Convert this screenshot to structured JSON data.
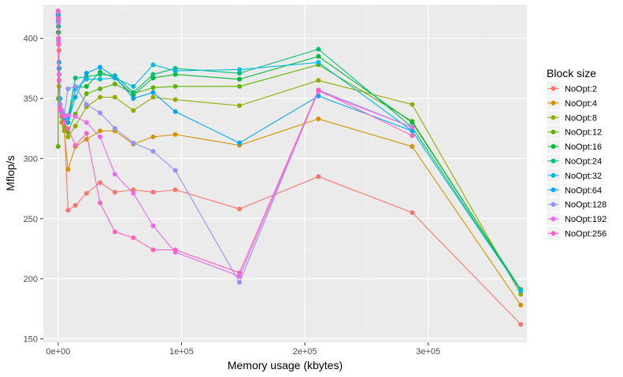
{
  "chart_data": {
    "type": "line",
    "title": "",
    "xlabel": "Memory usage (kbytes)",
    "ylabel": "Mflop/s",
    "xlim": [
      -12000,
      380000
    ],
    "ylim": [
      147,
      428
    ],
    "x_ticks": [
      0,
      100000,
      200000,
      300000
    ],
    "x_tick_labels": [
      "0e+00",
      "1e+05",
      "2e+05",
      "3e+05"
    ],
    "y_ticks": [
      150,
      200,
      250,
      300,
      350,
      400
    ],
    "y_tick_labels": [
      "150",
      "200",
      "250",
      "300",
      "350",
      "400"
    ],
    "grid": true,
    "legend": {
      "title": "Block size",
      "position": "right"
    },
    "series": [
      {
        "name": "NoOpt:2",
        "color": "#F8766D",
        "points": [
          [
            0,
            405
          ],
          [
            200,
            400
          ],
          [
            400,
            395
          ],
          [
            700,
            390
          ],
          [
            1200,
            345
          ],
          [
            2000,
            340
          ],
          [
            3000,
            336
          ],
          [
            5000,
            330
          ],
          [
            8000,
            257
          ],
          [
            14000,
            261
          ],
          [
            23000,
            271
          ],
          [
            34000,
            280
          ],
          [
            46000,
            272
          ],
          [
            61000,
            274
          ],
          [
            77000,
            272
          ],
          [
            95000,
            274
          ],
          [
            147000,
            258
          ],
          [
            211000,
            285
          ],
          [
            287000,
            255
          ],
          [
            375000,
            162
          ]
        ]
      },
      {
        "name": "NoOpt:4",
        "color": "#D39200",
        "points": [
          [
            0,
            350
          ],
          [
            200,
            398
          ],
          [
            400,
            395
          ],
          [
            800,
            360
          ],
          [
            1500,
            340
          ],
          [
            3000,
            330
          ],
          [
            5000,
            323
          ],
          [
            8000,
            291
          ],
          [
            14000,
            310
          ],
          [
            23000,
            316
          ],
          [
            34000,
            323
          ],
          [
            46000,
            323
          ],
          [
            61000,
            312
          ],
          [
            77000,
            318
          ],
          [
            95000,
            320
          ],
          [
            147000,
            311
          ],
          [
            211000,
            333
          ],
          [
            287000,
            310
          ],
          [
            375000,
            178
          ]
        ]
      },
      {
        "name": "NoOpt:8",
        "color": "#93AA00",
        "points": [
          [
            0,
            310
          ],
          [
            200,
            405
          ],
          [
            400,
            400
          ],
          [
            800,
            370
          ],
          [
            1500,
            345
          ],
          [
            3000,
            335
          ],
          [
            5000,
            326
          ],
          [
            8000,
            318
          ],
          [
            14000,
            327
          ],
          [
            23000,
            343
          ],
          [
            34000,
            351
          ],
          [
            46000,
            351
          ],
          [
            61000,
            340
          ],
          [
            77000,
            351
          ],
          [
            95000,
            349
          ],
          [
            147000,
            344
          ],
          [
            211000,
            365
          ],
          [
            287000,
            345
          ],
          [
            375000,
            187
          ]
        ]
      },
      {
        "name": "NoOpt:12",
        "color": "#5EB300",
        "points": [
          [
            0,
            310
          ],
          [
            200,
            410
          ],
          [
            400,
            400
          ],
          [
            800,
            365
          ],
          [
            1500,
            345
          ],
          [
            3000,
            335
          ],
          [
            5000,
            330
          ],
          [
            8000,
            322
          ],
          [
            14000,
            337
          ],
          [
            23000,
            354
          ],
          [
            34000,
            358
          ],
          [
            46000,
            362
          ],
          [
            61000,
            354
          ],
          [
            77000,
            359
          ],
          [
            95000,
            360
          ],
          [
            147000,
            360
          ],
          [
            211000,
            378
          ],
          [
            287000,
            331
          ],
          [
            375000,
            190
          ]
        ]
      },
      {
        "name": "NoOpt:16",
        "color": "#00BA38",
        "points": [
          [
            0,
            415
          ],
          [
            200,
            420
          ],
          [
            400,
            405
          ],
          [
            800,
            370
          ],
          [
            1500,
            345
          ],
          [
            3000,
            336
          ],
          [
            5000,
            331
          ],
          [
            8000,
            330
          ],
          [
            14000,
            359
          ],
          [
            23000,
            360
          ],
          [
            34000,
            372
          ],
          [
            46000,
            367
          ],
          [
            61000,
            353
          ],
          [
            77000,
            367
          ],
          [
            95000,
            370
          ],
          [
            147000,
            366
          ],
          [
            211000,
            385
          ],
          [
            287000,
            330
          ],
          [
            375000,
            191
          ]
        ]
      },
      {
        "name": "NoOpt:24",
        "color": "#00BF74",
        "points": [
          [
            0,
            420
          ],
          [
            200,
            418
          ],
          [
            400,
            410
          ],
          [
            800,
            375
          ],
          [
            1500,
            350
          ],
          [
            3000,
            340
          ],
          [
            5000,
            336
          ],
          [
            8000,
            334
          ],
          [
            14000,
            367
          ],
          [
            23000,
            368
          ],
          [
            34000,
            370
          ],
          [
            46000,
            369
          ],
          [
            61000,
            355
          ],
          [
            77000,
            370
          ],
          [
            95000,
            375
          ],
          [
            147000,
            371
          ],
          [
            211000,
            391
          ],
          [
            287000,
            326
          ],
          [
            375000,
            190
          ]
        ]
      },
      {
        "name": "NoOpt:32",
        "color": "#00BAE0",
        "points": [
          [
            0,
            421
          ],
          [
            200,
            415
          ],
          [
            400,
            400
          ],
          [
            800,
            380
          ],
          [
            1500,
            350
          ],
          [
            3000,
            340
          ],
          [
            5000,
            336
          ],
          [
            8000,
            334
          ],
          [
            14000,
            358
          ],
          [
            23000,
            366
          ],
          [
            34000,
            366
          ],
          [
            46000,
            367
          ],
          [
            61000,
            360
          ],
          [
            77000,
            378
          ],
          [
            95000,
            373
          ],
          [
            147000,
            374
          ],
          [
            211000,
            380
          ],
          [
            287000,
            323
          ],
          [
            375000,
            190
          ]
        ]
      },
      {
        "name": "NoOpt:64",
        "color": "#00A5FF",
        "points": [
          [
            0,
            419
          ],
          [
            200,
            414
          ],
          [
            400,
            395
          ],
          [
            800,
            375
          ],
          [
            1500,
            345
          ],
          [
            3000,
            338
          ],
          [
            5000,
            333
          ],
          [
            8000,
            330
          ],
          [
            14000,
            351
          ],
          [
            23000,
            371
          ],
          [
            34000,
            376
          ],
          [
            46000,
            368
          ],
          [
            61000,
            350
          ],
          [
            77000,
            355
          ],
          [
            95000,
            339
          ],
          [
            147000,
            313
          ],
          [
            211000,
            352
          ],
          [
            287000,
            323
          ]
        ]
      },
      {
        "name": "NoOpt:128",
        "color": "#9590FF",
        "points": [
          [
            0,
            423
          ],
          [
            200,
            413
          ],
          [
            400,
            398
          ],
          [
            800,
            370
          ],
          [
            1500,
            345
          ],
          [
            3000,
            340
          ],
          [
            5000,
            336
          ],
          [
            8000,
            358
          ],
          [
            14000,
            360
          ],
          [
            23000,
            345
          ],
          [
            34000,
            338
          ],
          [
            46000,
            325
          ],
          [
            61000,
            313
          ],
          [
            77000,
            306
          ],
          [
            95000,
            290
          ],
          [
            147000,
            197
          ],
          [
            211000,
            357
          ],
          [
            287000,
            326
          ]
        ]
      },
      {
        "name": "NoOpt:192",
        "color": "#E76BF3",
        "points": [
          [
            0,
            422
          ],
          [
            200,
            416
          ],
          [
            400,
            400
          ],
          [
            800,
            370
          ],
          [
            1500,
            340
          ],
          [
            3000,
            336
          ],
          [
            5000,
            335
          ],
          [
            8000,
            336
          ],
          [
            14000,
            335
          ],
          [
            23000,
            330
          ],
          [
            34000,
            318
          ],
          [
            46000,
            287
          ],
          [
            61000,
            271
          ],
          [
            77000,
            244
          ],
          [
            95000,
            222
          ],
          [
            147000,
            202
          ],
          [
            211000,
            356
          ],
          [
            287000,
            326
          ]
        ]
      },
      {
        "name": "NoOpt:256",
        "color": "#FF62BC",
        "points": [
          [
            0,
            423
          ],
          [
            200,
            417
          ],
          [
            400,
            395
          ],
          [
            800,
            365
          ],
          [
            1500,
            342
          ],
          [
            3000,
            336
          ],
          [
            5000,
            330
          ],
          [
            8000,
            325
          ],
          [
            14000,
            311
          ],
          [
            23000,
            321
          ],
          [
            34000,
            263
          ],
          [
            46000,
            239
          ],
          [
            61000,
            234
          ],
          [
            77000,
            224
          ],
          [
            95000,
            224
          ],
          [
            147000,
            205
          ],
          [
            211000,
            357
          ],
          [
            287000,
            319
          ]
        ]
      }
    ]
  }
}
